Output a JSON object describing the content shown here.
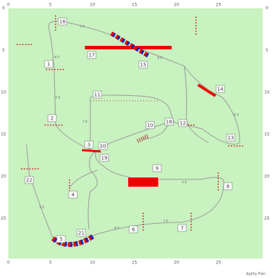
{
  "axis": {
    "x_labels": [
      "0",
      "5",
      "10",
      "15",
      "20",
      "25"
    ],
    "y_labels": [
      "0",
      "5",
      "10",
      "15",
      "20",
      "25"
    ]
  },
  "obstacles": [
    "1",
    "2",
    "3",
    "4",
    "5",
    "6",
    "7",
    "8",
    "9",
    "10",
    "11",
    "12",
    "13",
    "14",
    "15",
    "16",
    "17",
    "18",
    "19",
    "20",
    "21",
    "22"
  ],
  "distances": [
    "7.0",
    "8.0",
    "5.0",
    "7.0",
    "6.0",
    "5.0",
    "8.0",
    "7.0",
    "6.0",
    "4.0"
  ],
  "footer": "Agility Plan"
}
